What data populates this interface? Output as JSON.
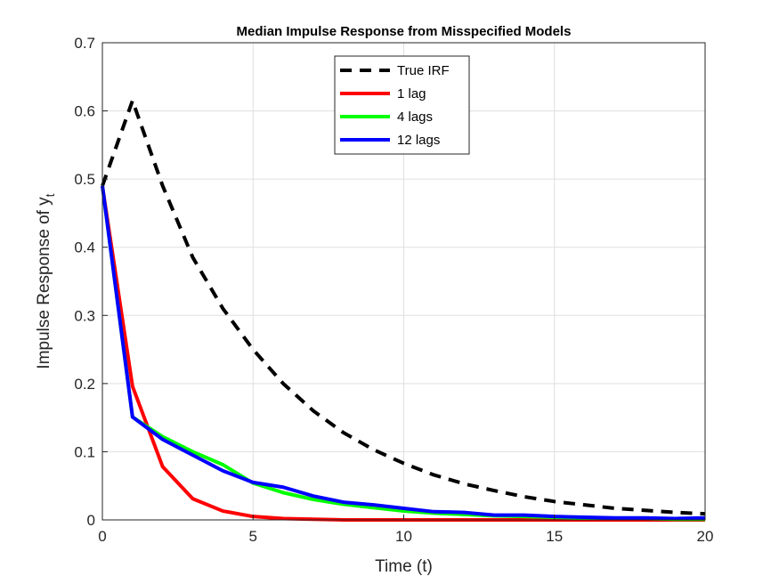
{
  "chart_data": {
    "type": "line",
    "title": "Median Impulse Response from Misspecified Models",
    "xlabel": "Time (t)",
    "ylabel_main": "Impulse Response of y",
    "ylabel_sub": "t",
    "xlim": [
      0,
      20
    ],
    "ylim": [
      0,
      0.7
    ],
    "xticks": [
      "0",
      "5",
      "10",
      "15",
      "20"
    ],
    "yticks": [
      "0",
      "0.1",
      "0.2",
      "0.3",
      "0.4",
      "0.5",
      "0.6",
      "0.7"
    ],
    "grid": true,
    "legend_position": "top-center",
    "x": [
      0,
      1,
      2,
      3,
      4,
      5,
      6,
      7,
      8,
      9,
      10,
      11,
      12,
      13,
      14,
      15,
      16,
      17,
      18,
      19,
      20
    ],
    "series": [
      {
        "name": "True IRF",
        "color": "#000000",
        "style": "dashed",
        "values": [
          0.49,
          0.615,
          0.49,
          0.385,
          0.31,
          0.25,
          0.2,
          0.16,
          0.128,
          0.103,
          0.083,
          0.066,
          0.053,
          0.043,
          0.034,
          0.027,
          0.022,
          0.017,
          0.014,
          0.011,
          0.009
        ]
      },
      {
        "name": "1 lag",
        "color": "#ff0000",
        "style": "solid",
        "values": [
          0.49,
          0.196,
          0.078,
          0.031,
          0.013,
          0.005,
          0.002,
          0.001,
          0.0,
          0.0,
          0.0,
          0.0,
          0.0,
          0.0,
          0.0,
          0.0,
          0.0,
          0.0,
          0.0,
          0.0,
          0.0
        ]
      },
      {
        "name": "4 lags",
        "color": "#00ff00",
        "style": "solid",
        "values": [
          0.49,
          0.151,
          0.122,
          0.1,
          0.081,
          0.054,
          0.04,
          0.03,
          0.023,
          0.018,
          0.013,
          0.01,
          0.008,
          0.006,
          0.005,
          0.004,
          0.003,
          0.002,
          0.002,
          0.001,
          0.001
        ]
      },
      {
        "name": "12 lags",
        "color": "#0000ff",
        "style": "solid",
        "values": [
          0.49,
          0.151,
          0.118,
          0.095,
          0.072,
          0.055,
          0.048,
          0.035,
          0.026,
          0.022,
          0.017,
          0.012,
          0.011,
          0.007,
          0.007,
          0.005,
          0.004,
          0.003,
          0.003,
          0.002,
          0.003
        ]
      }
    ]
  }
}
